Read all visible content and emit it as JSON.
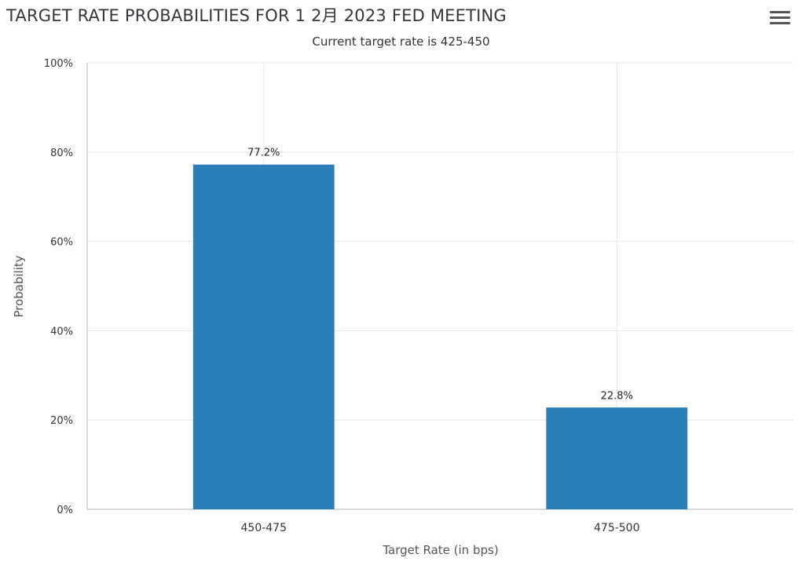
{
  "header": {
    "title": "TARGET RATE PROBABILITIES FOR 1 2月 2023 FED MEETING",
    "subtitle": "Current target rate is 425-450",
    "menu_icon": "hamburger-menu-icon"
  },
  "colors": {
    "bar": "#2a7fb8",
    "grid": "#e6e6e6",
    "axis": "#b0b0b0"
  },
  "chart_data": {
    "type": "bar",
    "title": "TARGET RATE PROBABILITIES FOR 1 2月 2023 FED MEETING",
    "subtitle": "Current target rate is 425-450",
    "xlabel": "Target Rate (in bps)",
    "ylabel": "Probability",
    "categories": [
      "450-475",
      "475-500"
    ],
    "values": [
      77.2,
      22.8
    ],
    "data_labels": [
      "77.2%",
      "22.8%"
    ],
    "ylim": [
      0,
      100
    ],
    "yticks": [
      "0%",
      "20%",
      "40%",
      "60%",
      "80%",
      "100%"
    ],
    "grid": true,
    "legend": "none"
  }
}
